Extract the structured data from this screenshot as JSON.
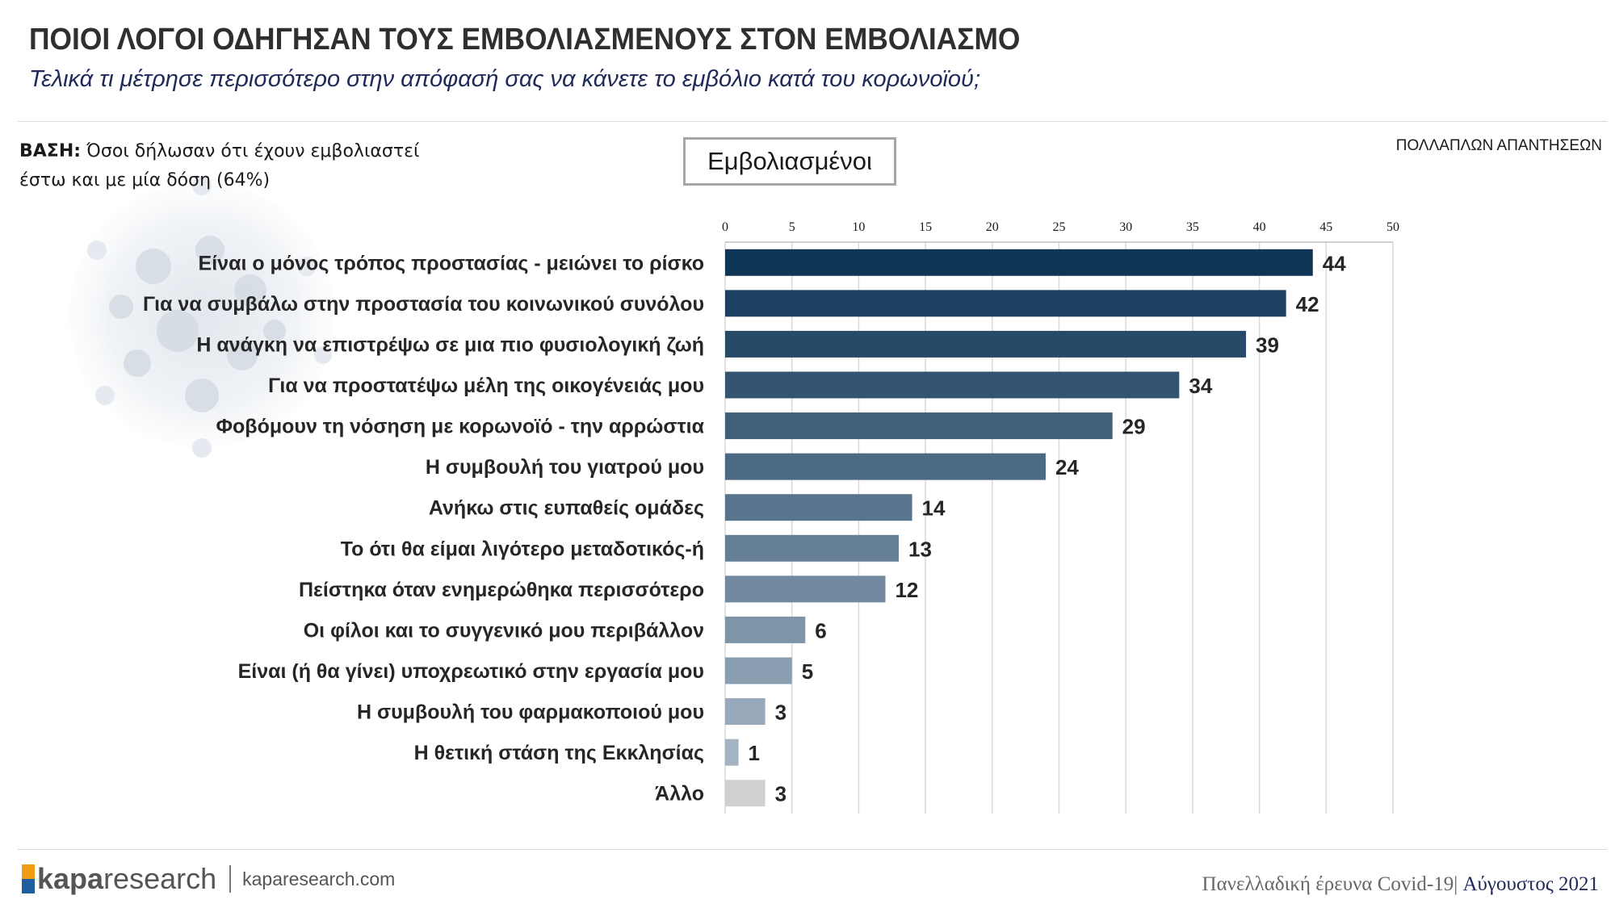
{
  "header": {
    "title": "ΠΟΙΟΙ ΛΟΓΟΙ ΟΔΗΓΗΣΑΝ ΤΟΥΣ ΕΜΒΟΛΙΑΣΜΕΝΟΥΣ ΣΤΟΝ ΕΜΒΟΛΙΑΣΜΟ",
    "subtitle": "Τελικά τι μέτρησε περισσότερο στην απόφασή σας να κάνετε το εμβόλιο κατά του κορωνοϊού;"
  },
  "base": {
    "label": "ΒΑΣΗ:",
    "text": " Όσοι δήλωσαν ότι έχουν εμβολιαστεί έστω και με μία δόση (64%)"
  },
  "group_label": "Εμβολιασμένοι",
  "multiple_answers": "ΠΟΛΛΑΠΛΩΝ ΑΠΑΝΤΗΣΕΩΝ",
  "footer": {
    "logo_bold": "kapa",
    "logo_rest": "research",
    "url": "kaparesearch.com",
    "survey": "Πανελλαδική έρευνα Covid-19",
    "separator": "|",
    "month": "Αύγουστος 2021"
  },
  "colors": {
    "bar_dark": "#0f3557",
    "bar_light": "#a3b3c3",
    "bar_other": "#d0d0d0",
    "title": "#2f2f2f",
    "subtitle": "#1f2a5a"
  },
  "chart_data": {
    "type": "bar",
    "orientation": "horizontal",
    "categories": [
      "Είναι ο μόνος τρόπος προστασίας - μειώνει το ρίσκο",
      "Για να συμβάλω στην προστασία του κοινωνικού συνόλου",
      "Η ανάγκη να επιστρέψω σε μια πιο φυσιολογική ζωή",
      "Για να προστατέψω μέλη της οικογένειάς μου",
      "Φοβόμουν τη νόσηση με κορωνοϊό - την αρρώστια",
      "Η συμβουλή του γιατρού μου",
      "Ανήκω στις ευπαθείς ομάδες",
      "Το ότι θα είμαι λιγότερο μεταδοτικός-ή",
      "Πείστηκα όταν ενημερώθηκα περισσότερο",
      "Οι φίλοι και το συγγενικό μου περιβάλλον",
      "Είναι (ή θα γίνει) υποχρεωτικό στην εργασία μου",
      "Η συμβουλή του φαρμακοποιού μου",
      "Η θετική στάση της Εκκλησίας",
      "Άλλο"
    ],
    "values": [
      44,
      42,
      39,
      34,
      29,
      24,
      14,
      13,
      12,
      6,
      5,
      3,
      1,
      3
    ],
    "xlim": [
      0,
      50
    ],
    "xticks": [
      0,
      5,
      10,
      15,
      20,
      25,
      30,
      35,
      40,
      45,
      50
    ],
    "axis_position": "top",
    "grid": true,
    "data_labels": true
  }
}
